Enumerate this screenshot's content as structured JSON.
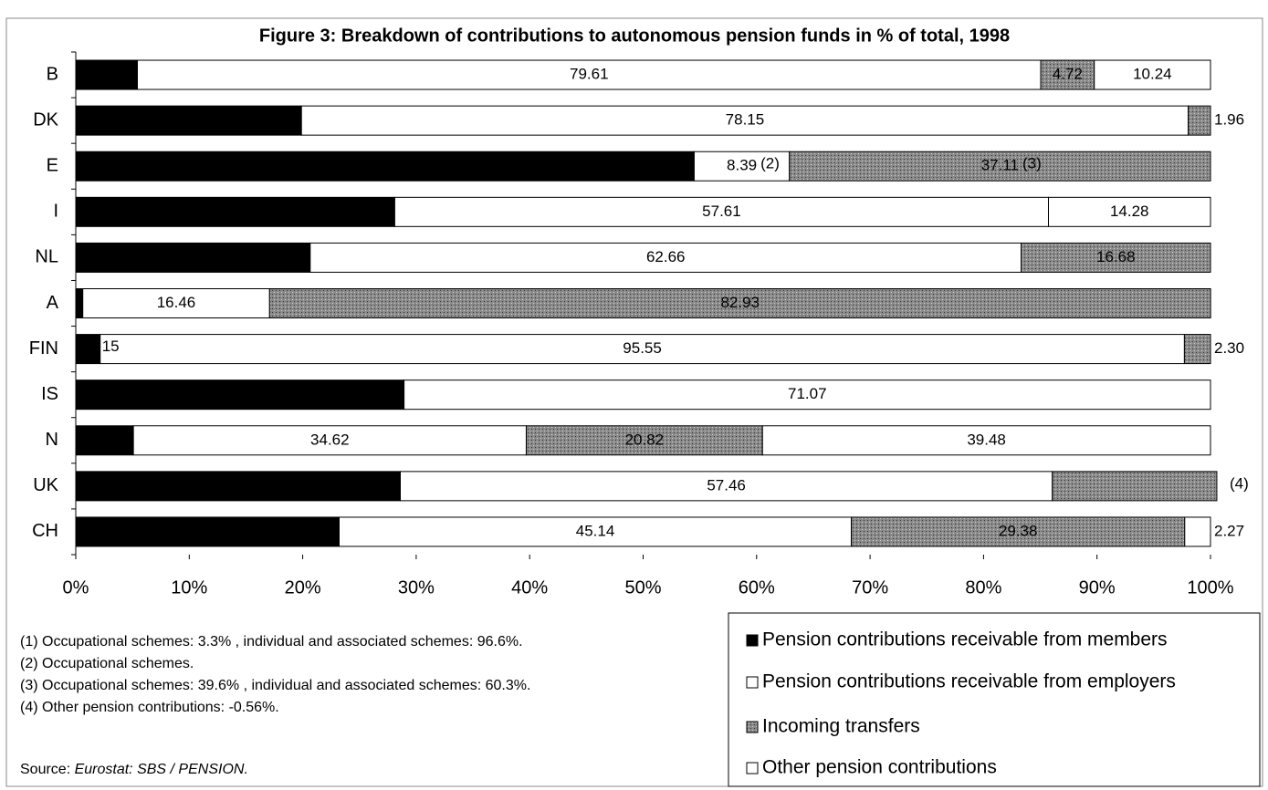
{
  "chart_data": {
    "type": "stacked-bar-horizontal",
    "title": "Figure 3: Breakdown of contributions to autonomous pension funds in % of total, 1998",
    "categories": [
      "B",
      "DK",
      "E",
      "I",
      "NL",
      "A",
      "FIN",
      "IS",
      "N",
      "UK",
      "CH"
    ],
    "series": [
      {
        "name": "Pension contributions receivable from members",
        "color": "#000000",
        "values": [
          5.43,
          19.89,
          54.5,
          28.11,
          20.66,
          0.62,
          2.15,
          28.93,
          5.08,
          28.6,
          23.21
        ],
        "value_labels": [
          null,
          null,
          null,
          null,
          null,
          "0.62",
          null,
          null,
          null,
          null,
          null
        ]
      },
      {
        "name": "Pension contributions receivable from employers",
        "color": "#ffffff",
        "values": [
          79.61,
          78.15,
          8.39,
          57.61,
          62.66,
          16.46,
          95.55,
          71.07,
          34.62,
          57.46,
          45.14
        ],
        "value_labels": [
          "79.61",
          "78.15",
          "8.39",
          "57.61",
          "62.66",
          "16.46",
          "95.55",
          "71.07",
          "34.62",
          "57.46",
          "45.14"
        ]
      },
      {
        "name": "Incoming transfers",
        "color": "#8a8a8a",
        "values": [
          4.72,
          1.96,
          37.11,
          null,
          16.68,
          82.93,
          2.3,
          null,
          20.82,
          14.5,
          29.38
        ],
        "value_labels": [
          "4.72",
          "1.96",
          "37.11",
          null,
          "16.68",
          "82.93",
          "2.30",
          null,
          "20.82",
          null,
          "29.38"
        ]
      },
      {
        "name": "Other pension contributions",
        "color": "#ffffff",
        "values": [
          10.24,
          null,
          null,
          14.28,
          null,
          null,
          null,
          null,
          39.48,
          null,
          2.27
        ],
        "value_labels": [
          "10.24",
          null,
          null,
          "14.28",
          null,
          null,
          null,
          null,
          "39.48",
          null,
          "2.27"
        ]
      }
    ],
    "annotations": [
      {
        "text": "(2)",
        "category": 2,
        "series": 1
      },
      {
        "text": "(3)",
        "category": 2,
        "series": 2
      },
      {
        "text": "15",
        "category": 6,
        "series": 0
      },
      {
        "text": "(4)",
        "category": 9,
        "series": 2
      }
    ],
    "xlim": [
      0,
      100
    ],
    "xticks": [
      {
        "value": 0,
        "label": "0%"
      },
      {
        "value": 10,
        "label": "10%"
      },
      {
        "value": 20,
        "label": "20%"
      },
      {
        "value": 30,
        "label": "30%"
      },
      {
        "value": 40,
        "label": "40%"
      },
      {
        "value": 50,
        "label": "50%"
      },
      {
        "value": 60,
        "label": "60%"
      },
      {
        "value": 70,
        "label": "70%"
      },
      {
        "value": 80,
        "label": "80%"
      },
      {
        "value": 90,
        "label": "90%"
      },
      {
        "value": 100,
        "label": "100%"
      }
    ],
    "notes": [
      "(1) Occupational schemes: 3.3% , individual and associated schemes: 96.6%.",
      "(2) Occupational schemes.",
      "(3) Occupational schemes: 39.6% , individual and associated schemes:  60.3%.",
      "(4) Other pension contributions: -0.56%."
    ],
    "source_label": "Source:",
    "source": "Eurostat: SBS / PENSION."
  }
}
